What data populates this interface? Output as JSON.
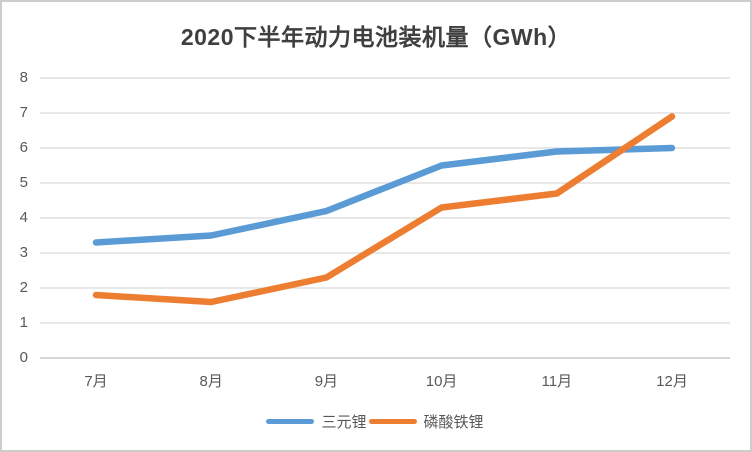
{
  "chart_data": {
    "type": "line",
    "title": "2020下半年动力电池装机量（GWh）",
    "categories": [
      "7月",
      "8月",
      "9月",
      "10月",
      "11月",
      "12月"
    ],
    "series": [
      {
        "name": "三元锂",
        "color": "#5B9BD5",
        "values": [
          3.3,
          3.5,
          4.2,
          5.5,
          5.9,
          6.0
        ]
      },
      {
        "name": "磷酸铁锂",
        "color": "#ED7D31",
        "values": [
          1.8,
          1.6,
          2.3,
          4.3,
          4.7,
          6.9
        ]
      }
    ],
    "xlabel": "",
    "ylabel": "",
    "ylim": [
      0,
      8
    ],
    "yticks": [
      0,
      1,
      2,
      3,
      4,
      5,
      6,
      7,
      8
    ],
    "grid": "horizontal",
    "legend_position": "bottom",
    "colors": {
      "grid": "#D9D9D9",
      "axis": "#BFBFBF",
      "tick_label": "#595959",
      "title": "#3F3F3F",
      "background": "#FFFFFF",
      "border": "#CCCCCC"
    }
  }
}
